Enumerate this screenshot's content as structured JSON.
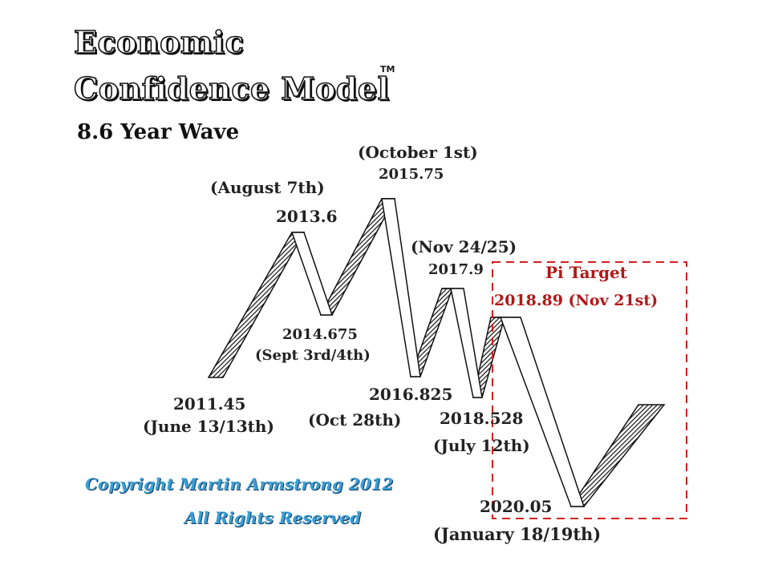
{
  "title": {
    "line1": "Economic",
    "line2": "Confidence Model",
    "tm": "TM"
  },
  "subtitle": "8.6 Year Wave",
  "points": [
    {
      "value": "2011.45",
      "date": "(June 13/13th)"
    },
    {
      "value": "2013.6",
      "date": "(August 7th)"
    },
    {
      "value": "2014.675",
      "date": "(Sept 3rd/4th)"
    },
    {
      "value": "2015.75",
      "date": "(October 1st)"
    },
    {
      "value": "2016.825",
      "date": "(Oct 28th)"
    },
    {
      "value": "2017.9",
      "date": "(Nov 24/25)"
    },
    {
      "value": "2018.528",
      "date": "(July 12th)"
    },
    {
      "value": "2018.89 (Nov 21st)",
      "date": ""
    },
    {
      "value": "2020.05",
      "date": "(January 18/19th)"
    }
  ],
  "pi_target": "Pi Target",
  "copyright": {
    "line1": "Copyright Martin Armstrong 2012",
    "line2": "All Rights Reserved"
  },
  "colors": {
    "accent_red": "#d42020",
    "copyright_blue": "#3aa0d8"
  }
}
